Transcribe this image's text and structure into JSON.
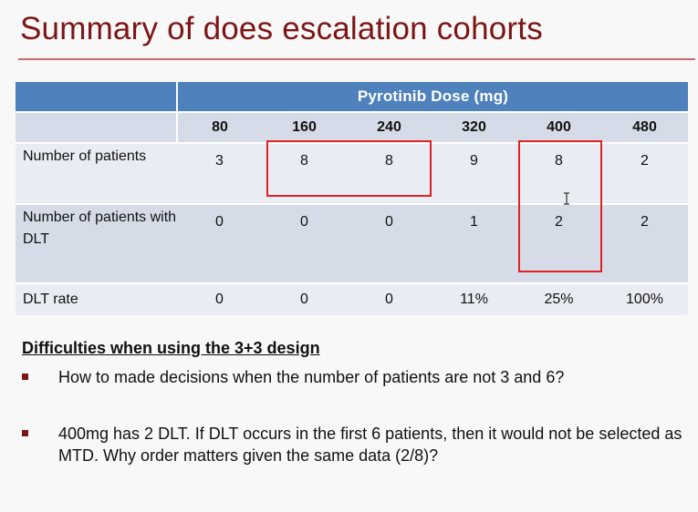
{
  "slide": {
    "title": "Summary of does escalation cohorts"
  },
  "table": {
    "group_header": "Pyrotinib Dose (mg)",
    "doses": [
      "80",
      "160",
      "240",
      "320",
      "400",
      "480"
    ],
    "rows": [
      {
        "label": "Number of patients",
        "values": [
          "3",
          "8",
          "8",
          "9",
          "8",
          "2"
        ]
      },
      {
        "label": "Number of patients with DLT",
        "values": [
          "0",
          "0",
          "0",
          "1",
          "2",
          "2"
        ]
      },
      {
        "label": "DLT rate",
        "values": [
          "0",
          "0",
          "0",
          "11%",
          "25%",
          "100%"
        ]
      }
    ]
  },
  "colors": {
    "title": "#7c1515",
    "header_blue": "#4f81bd",
    "highlight_red": "#e02222"
  },
  "notes": {
    "heading": "Difficulties when using the 3+3 design",
    "bullets": [
      "How to made decisions when the number of patients are not 3 and 6?",
      "400mg has 2 DLT. If DLT occurs in the first 6 patients, then it would not be selected as MTD. Why order matters given the same data (2/8)?"
    ]
  }
}
